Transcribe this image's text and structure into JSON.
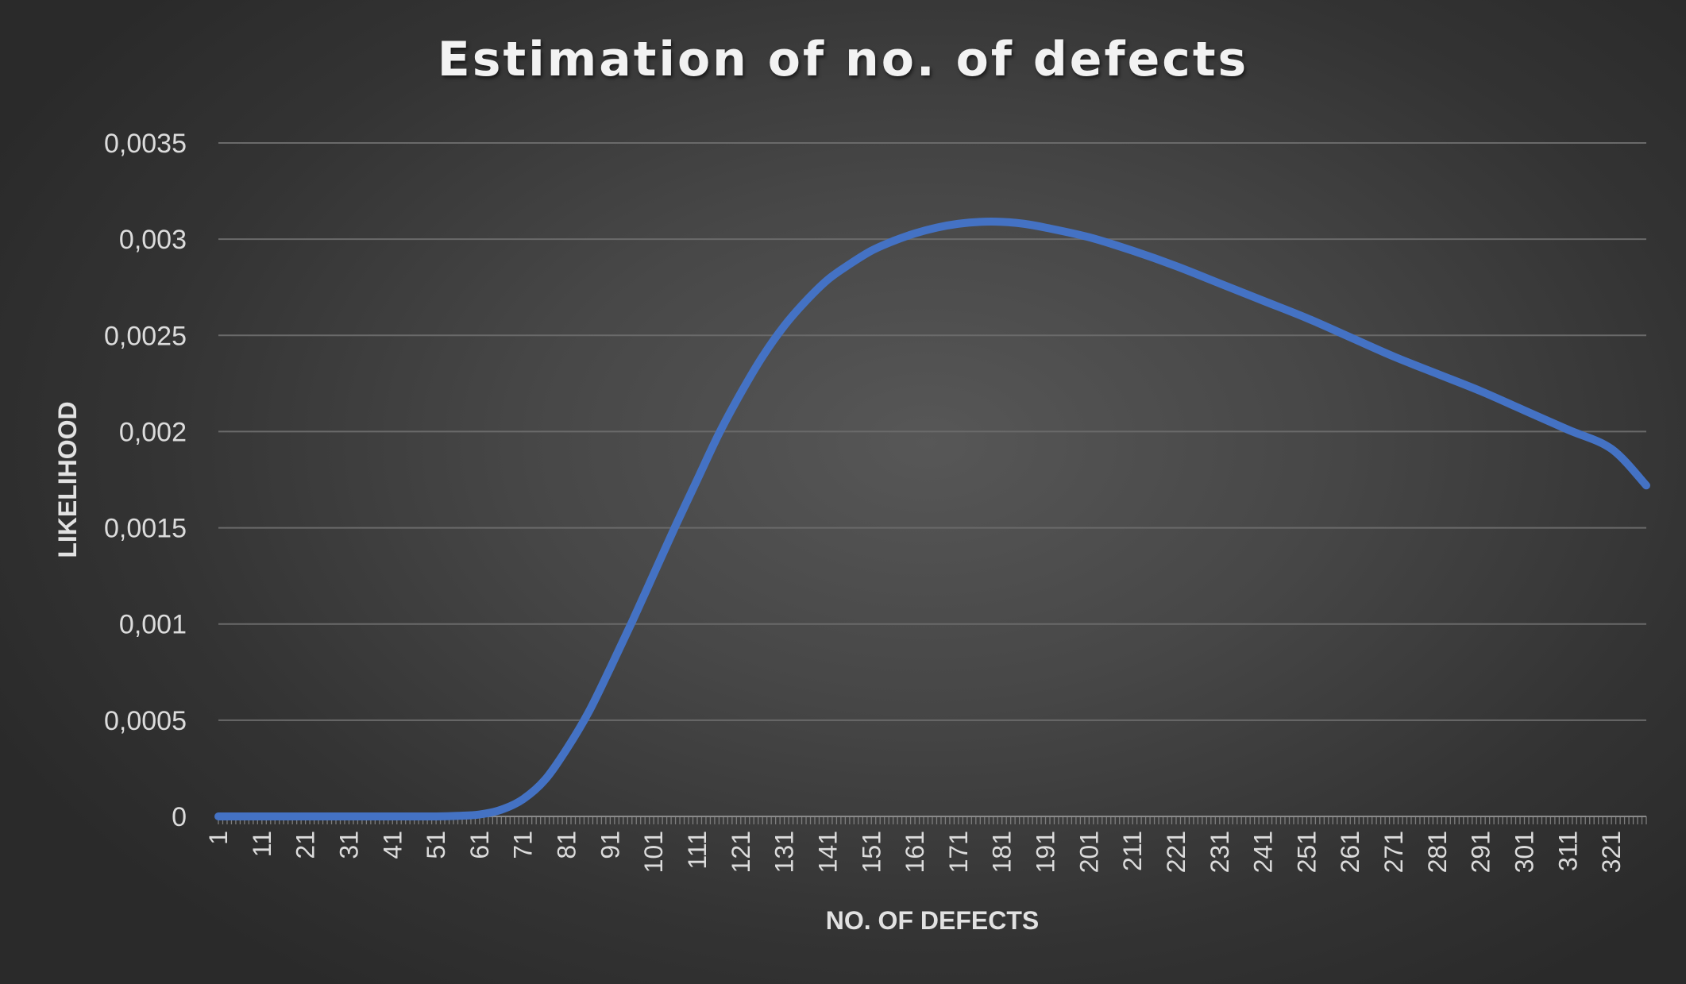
{
  "chart_data": {
    "type": "line",
    "title": "Estimation of no. of defects",
    "xlabel": "NO. OF DEFECTS",
    "ylabel": "LIKELIHOOD",
    "x_range": [
      1,
      329
    ],
    "x_tick_labels": [
      "1",
      "11",
      "21",
      "31",
      "41",
      "51",
      "61",
      "71",
      "81",
      "91",
      "101",
      "111",
      "121",
      "131",
      "141",
      "151",
      "161",
      "171",
      "181",
      "191",
      "201",
      "211",
      "221",
      "231",
      "241",
      "251",
      "261",
      "271",
      "281",
      "291",
      "301",
      "311",
      "321"
    ],
    "ylim": [
      0,
      0.0035
    ],
    "y_ticks": [
      0,
      0.0005,
      0.001,
      0.0015,
      0.002,
      0.0025,
      0.003,
      0.0035
    ],
    "y_tick_labels": [
      "0",
      "0,0005",
      "0,001",
      "0,0015",
      "0,002",
      "0,0025",
      "0,003",
      "0,0035"
    ],
    "grid": true,
    "legend": "none",
    "series": [
      {
        "color": "#4472c4",
        "x": [
          1,
          11,
          21,
          31,
          41,
          51,
          56,
          61,
          66,
          71,
          76,
          81,
          86,
          91,
          96,
          101,
          106,
          111,
          116,
          121,
          126,
          131,
          136,
          141,
          146,
          151,
          156,
          161,
          166,
          171,
          176,
          181,
          186,
          191,
          201,
          211,
          221,
          231,
          241,
          251,
          261,
          271,
          281,
          291,
          301,
          311,
          321,
          329
        ],
        "values": [
          0,
          0,
          0,
          0,
          0,
          0,
          3e-06,
          1e-05,
          3.5e-05,
          9e-05,
          0.00019,
          0.00035,
          0.00054,
          0.00077,
          0.00101,
          0.00126,
          0.00151,
          0.00175,
          0.00199,
          0.0022,
          0.00239,
          0.00255,
          0.00268,
          0.00279,
          0.00287,
          0.00294,
          0.00299,
          0.00303,
          0.00306,
          0.00308,
          0.00309,
          0.00309,
          0.00308,
          0.00306,
          0.00301,
          0.00294,
          0.00286,
          0.00277,
          0.00268,
          0.00259,
          0.00249,
          0.00239,
          0.0023,
          0.00221,
          0.00211,
          0.00201,
          0.00191,
          0.00172
        ]
      }
    ]
  }
}
